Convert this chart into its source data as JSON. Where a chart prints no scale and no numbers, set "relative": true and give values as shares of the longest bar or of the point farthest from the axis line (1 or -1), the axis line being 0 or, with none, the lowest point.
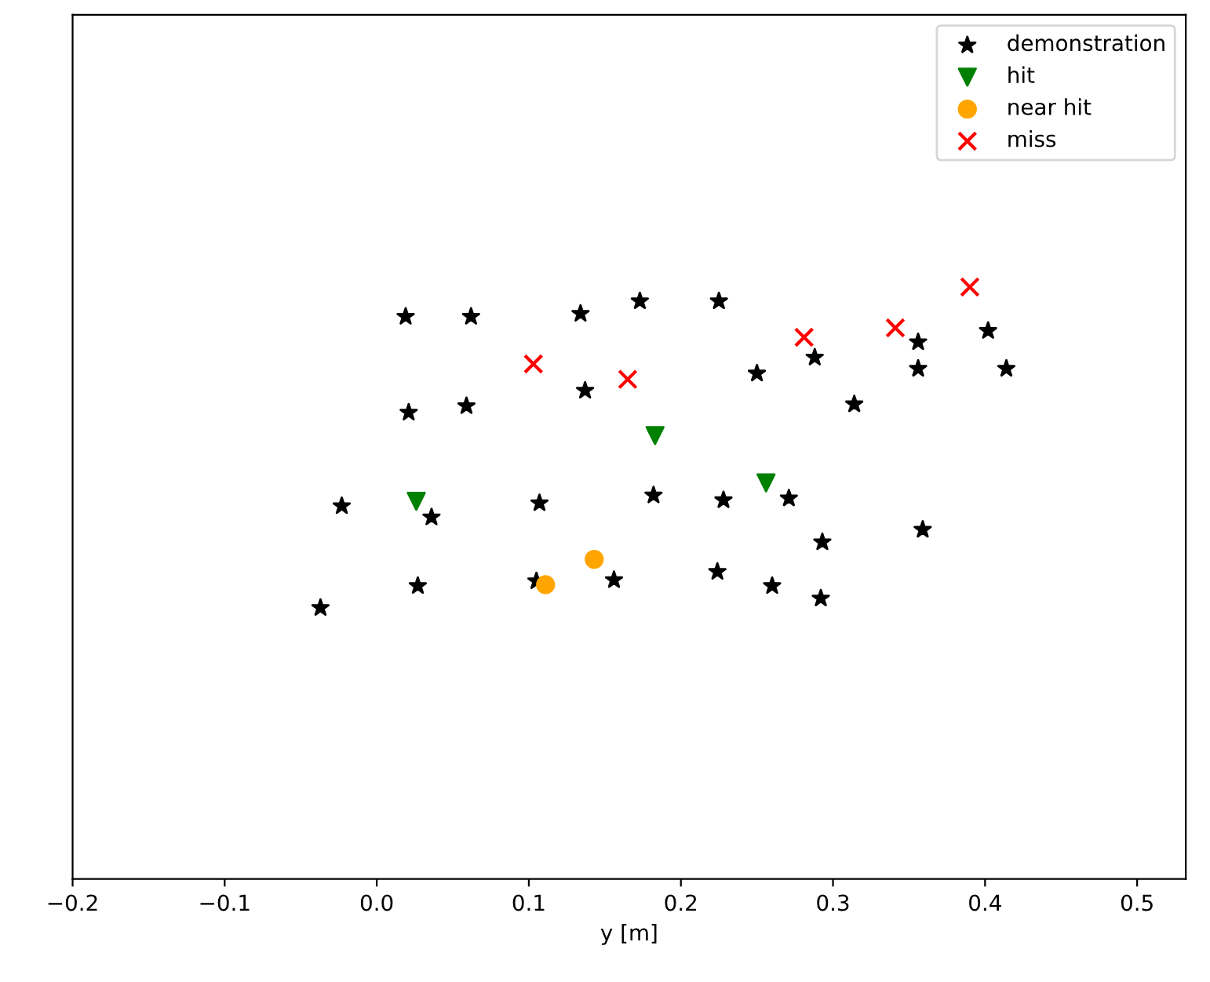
{
  "chart_data": {
    "type": "scatter",
    "xlabel": "y [m]",
    "relative": true,
    "tick_labels": "x",
    "xlim": [
      -0.2,
      0.532
    ],
    "xticks": [
      {
        "value": -0.2,
        "label": "−0.2"
      },
      {
        "value": -0.1,
        "label": "−0.1"
      },
      {
        "value": 0.0,
        "label": "0.0"
      },
      0.1,
      0.2,
      0.3,
      0.4,
      0.5
    ],
    "grid": false,
    "legend": "top right",
    "series": [
      {
        "name": "demonstration",
        "color": "#000000",
        "marker": "star",
        "x": [
          -0.037,
          -0.023,
          0.019,
          0.062,
          0.021,
          0.059,
          0.036,
          0.027,
          0.107,
          0.105,
          0.134,
          0.137,
          0.173,
          0.156,
          0.182,
          0.224,
          0.225,
          0.228,
          0.25,
          0.26,
          0.271,
          0.288,
          0.292,
          0.293,
          0.314,
          0.356,
          0.356,
          0.359,
          0.402,
          0.414
        ],
        "values": [
          0.458,
          0.63,
          0.95,
          0.95,
          0.788,
          0.799,
          0.611,
          0.495,
          0.635,
          0.503,
          0.955,
          0.825,
          0.976,
          0.505,
          0.648,
          0.519,
          0.976,
          0.64,
          0.854,
          0.495,
          0.643,
          0.881,
          0.474,
          0.569,
          0.802,
          0.907,
          0.862,
          0.59,
          0.926,
          0.862
        ]
      },
      {
        "name": "hit",
        "color": "#008000",
        "marker": "triangle",
        "x": [
          0.026,
          0.183,
          0.256
        ],
        "values": [
          0.638,
          0.749,
          0.669
        ]
      },
      {
        "name": "near hit",
        "color": "#ffa500",
        "marker": "circle",
        "x": [
          0.111,
          0.143
        ],
        "values": [
          0.497,
          0.54
        ]
      },
      {
        "name": "miss",
        "color": "#ff0000",
        "marker": "cross",
        "x": [
          0.103,
          0.165,
          0.281,
          0.341,
          0.39
        ],
        "values": [
          0.87,
          0.844,
          0.915,
          0.931,
          1.0
        ]
      }
    ]
  }
}
